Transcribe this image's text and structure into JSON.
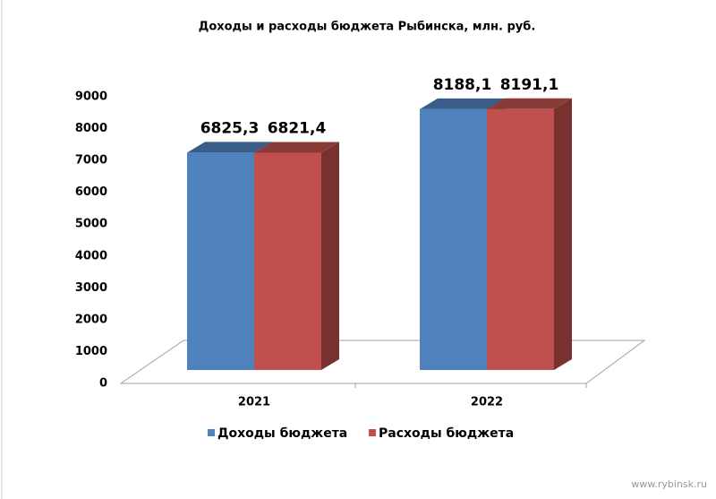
{
  "chart_data": {
    "type": "bar3d",
    "title": "Доходы и расходы бюджета Рыбинска, млн. руб.",
    "categories": [
      "2021",
      "2022"
    ],
    "series": [
      {
        "name": "Доходы бюджета",
        "color": "#4f81bd",
        "values": [
          6825.3,
          8188.1
        ],
        "value_labels": [
          "6825,3",
          "8188,1"
        ]
      },
      {
        "name": "Расходы бюджета",
        "color": "#c0504d",
        "values": [
          6821.4,
          8191.1
        ],
        "value_labels": [
          "6821,4",
          "8191,1"
        ]
      }
    ],
    "ylim": [
      0,
      9000
    ],
    "yticks": [
      0,
      1000,
      2000,
      3000,
      4000,
      5000,
      6000,
      7000,
      8000,
      9000
    ],
    "legend": "bottom",
    "watermark": "www.rybinsk.ru"
  }
}
